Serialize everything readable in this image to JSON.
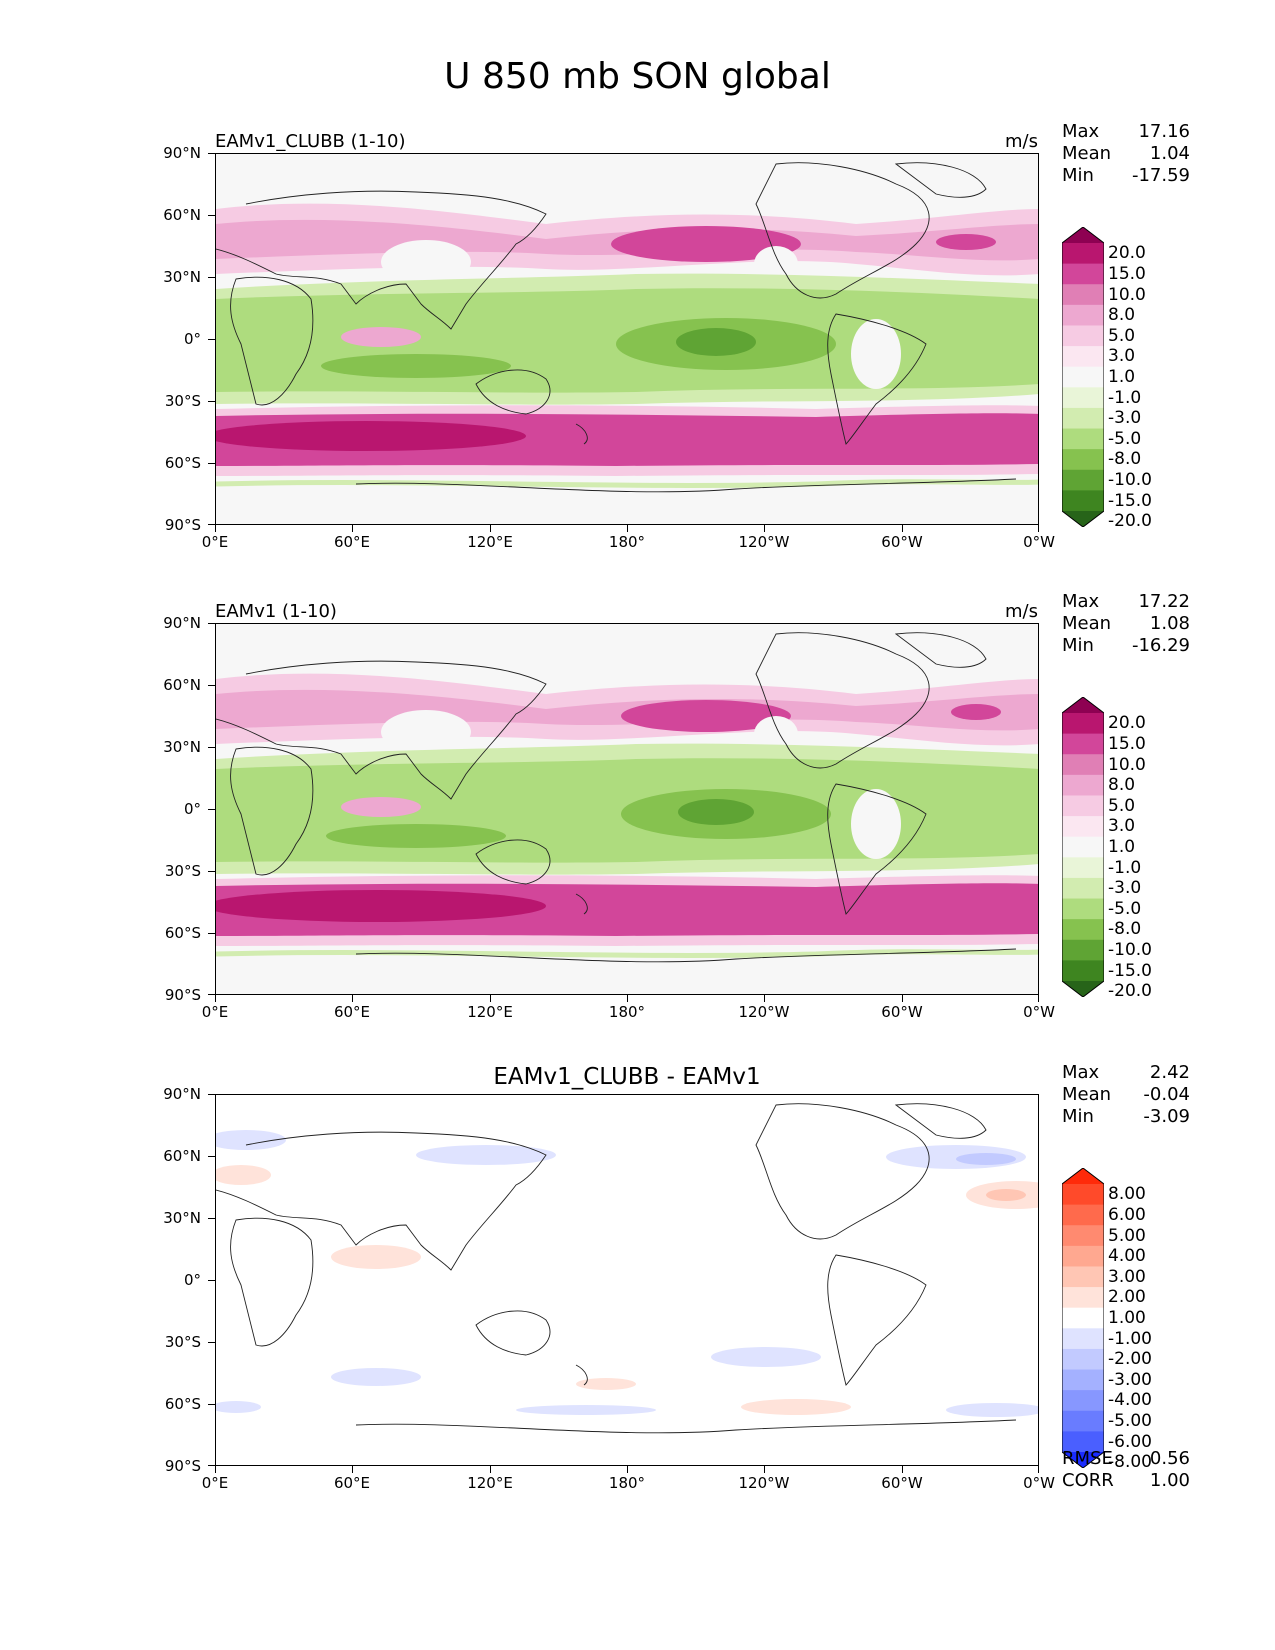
{
  "title": "U 850 mb SON global",
  "axes": {
    "lat_labels": [
      "90°N",
      "60°N",
      "30°N",
      "0°",
      "30°S",
      "60°S",
      "90°S"
    ],
    "lon_labels": [
      "0°E",
      "60°E",
      "120°E",
      "180°",
      "120°W",
      "60°W",
      "0°W"
    ]
  },
  "panels": [
    {
      "id": "clubb",
      "title": "EAMv1_CLUBB (1-10)",
      "units": "m/s",
      "stats": {
        "max_label": "Max",
        "max": "17.16",
        "mean_label": "Mean",
        "mean": "1.04",
        "min_label": "Min",
        "min": "-17.59"
      },
      "colorbar": {
        "levels": [
          "20.0",
          "15.0",
          "10.0",
          "8.0",
          "5.0",
          "3.0",
          "1.0",
          "-1.0",
          "-3.0",
          "-5.0",
          "-8.0",
          "-10.0",
          "-15.0",
          "-20.0"
        ],
        "colors": [
          "#8e0152",
          "#b9166f",
          "#d2469a",
          "#e07fb5",
          "#eda8d0",
          "#f6cbe3",
          "#fbe7f1",
          "#f7f7f7",
          "#e9f5d8",
          "#d2ecb0",
          "#aedc7e",
          "#86c24f",
          "#5fa434",
          "#3e8520",
          "#276419"
        ]
      }
    },
    {
      "id": "eamv1",
      "title": "EAMv1 (1-10)",
      "units": "m/s",
      "stats": {
        "max_label": "Max",
        "max": "17.22",
        "mean_label": "Mean",
        "mean": "1.08",
        "min_label": "Min",
        "min": "-16.29"
      },
      "colorbar": {
        "levels": [
          "20.0",
          "15.0",
          "10.0",
          "8.0",
          "5.0",
          "3.0",
          "1.0",
          "-1.0",
          "-3.0",
          "-5.0",
          "-8.0",
          "-10.0",
          "-15.0",
          "-20.0"
        ],
        "colors": [
          "#8e0152",
          "#b9166f",
          "#d2469a",
          "#e07fb5",
          "#eda8d0",
          "#f6cbe3",
          "#fbe7f1",
          "#f7f7f7",
          "#e9f5d8",
          "#d2ecb0",
          "#aedc7e",
          "#86c24f",
          "#5fa434",
          "#3e8520",
          "#276419"
        ]
      }
    },
    {
      "id": "diff",
      "title": "EAMv1_CLUBB - EAMv1",
      "units": "",
      "stats": {
        "max_label": "Max",
        "max": "2.42",
        "mean_label": "Mean",
        "mean": "-0.04",
        "min_label": "Min",
        "min": "-3.09"
      },
      "extra": {
        "rmse_label": "RMSE",
        "rmse": "0.56",
        "corr_label": "CORR",
        "corr": "1.00"
      },
      "colorbar": {
        "levels": [
          "8.00",
          "6.00",
          "5.00",
          "4.00",
          "3.00",
          "2.00",
          "1.00",
          "-1.00",
          "-2.00",
          "-3.00",
          "-4.00",
          "-5.00",
          "-6.00",
          "-8.00"
        ],
        "colors": [
          "#ff2a0a",
          "#ff4a2a",
          "#ff6a4c",
          "#ff8a70",
          "#ffa890",
          "#ffc6b4",
          "#ffe3da",
          "#ffffff",
          "#dfe3ff",
          "#c2caff",
          "#a4b1ff",
          "#8797ff",
          "#697cff",
          "#4a5fff",
          "#1a2cff"
        ]
      }
    }
  ],
  "chart_data": {
    "type": "map",
    "title": "U 850 mb SON global",
    "variable": "U",
    "units": "m/s",
    "panels": [
      {
        "title": "EAMv1_CLUBB (1-10)",
        "max": 17.16,
        "mean": 1.04,
        "min": -17.59
      },
      {
        "title": "EAMv1 (1-10)",
        "max": 17.22,
        "mean": 1.08,
        "min": -16.29
      },
      {
        "title": "EAMv1_CLUBB - EAMv1",
        "max": 2.42,
        "mean": -0.04,
        "min": -3.09,
        "rmse": 0.56,
        "corr": 1.0
      }
    ]
  }
}
